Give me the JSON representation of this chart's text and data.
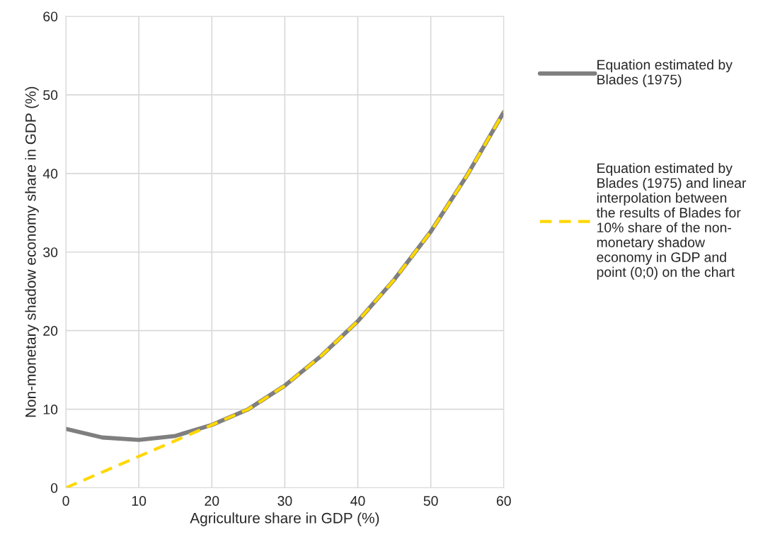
{
  "chart_data": {
    "type": "line",
    "xlabel": "Agriculture share in GDP (%)",
    "ylabel": "Non-monetary shadow economy share in GDP (%)",
    "xlim": [
      0,
      60
    ],
    "ylim": [
      0,
      60
    ],
    "xticks": [
      0,
      10,
      20,
      30,
      40,
      50,
      60
    ],
    "yticks": [
      0,
      10,
      20,
      30,
      40,
      50,
      60
    ],
    "grid": true,
    "legend": "right",
    "series": [
      {
        "name": "Equation estimated by\nBlades (1975)",
        "color": "#7f7f7f",
        "line_style": "solid",
        "x": [
          0,
          5,
          10,
          15,
          20,
          25,
          30,
          35,
          40,
          45,
          50,
          55,
          60
        ],
        "values": [
          7.5,
          6.4,
          6.1,
          6.6,
          8.0,
          10.0,
          13.0,
          16.8,
          21.2,
          26.5,
          32.6,
          39.8,
          47.8
        ]
      },
      {
        "name": "Equation estimated by\nBlades (1975) and linear\ninterpolation between\nthe results of Blades for\n10% share of the non-\nmonetary shadow\neconomy in GDP and\npoint (0;0) on the chart",
        "color": "#ffd700",
        "line_style": "dashed",
        "x": [
          0,
          10,
          20,
          25,
          30,
          35,
          40,
          45,
          50,
          55,
          60
        ],
        "values": [
          0,
          4.0,
          8.0,
          10.0,
          13.0,
          16.8,
          21.2,
          26.5,
          32.6,
          39.8,
          47.8
        ]
      }
    ]
  }
}
